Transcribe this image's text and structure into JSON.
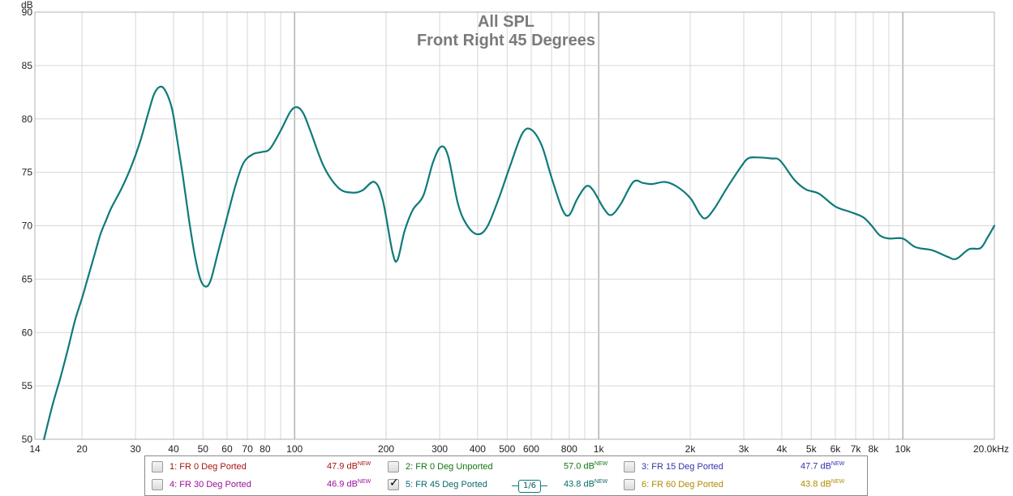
{
  "chart_data": {
    "type": "line",
    "title": "All SPL",
    "subtitle": "Front Right 45 Degrees",
    "ylabel": "dB",
    "xlabel": "",
    "x_scale": "log",
    "xlim": [
      14,
      20000
    ],
    "ylim": [
      50,
      90
    ],
    "grid": true,
    "y_ticks": [
      "50",
      "55",
      "60",
      "65",
      "70",
      "75",
      "80",
      "85",
      "90"
    ],
    "x_ticks": [
      {
        "value": 14,
        "label": "14"
      },
      {
        "value": 20,
        "label": "20"
      },
      {
        "value": 30,
        "label": "30"
      },
      {
        "value": 40,
        "label": "40"
      },
      {
        "value": 50,
        "label": "50"
      },
      {
        "value": 60,
        "label": "60"
      },
      {
        "value": 70,
        "label": "70"
      },
      {
        "value": 80,
        "label": "80"
      },
      {
        "value": 100,
        "label": "100"
      },
      {
        "value": 200,
        "label": "200"
      },
      {
        "value": 300,
        "label": "300"
      },
      {
        "value": 400,
        "label": "400"
      },
      {
        "value": 500,
        "label": "500"
      },
      {
        "value": 600,
        "label": "600"
      },
      {
        "value": 800,
        "label": "800"
      },
      {
        "value": 1000,
        "label": "1k"
      },
      {
        "value": 2000,
        "label": "2k"
      },
      {
        "value": 3000,
        "label": "3k"
      },
      {
        "value": 4000,
        "label": "4k"
      },
      {
        "value": 5000,
        "label": "5k"
      },
      {
        "value": 6000,
        "label": "6k"
      },
      {
        "value": 7000,
        "label": "7k"
      },
      {
        "value": 8000,
        "label": "8k"
      },
      {
        "value": 10000,
        "label": "10k"
      },
      {
        "value": 20000,
        "label": "20.0kHz"
      }
    ],
    "series": [
      {
        "name": "5: FR 45 Deg Ported",
        "color": "#0f7a7a",
        "points": [
          [
            15,
            50.0
          ],
          [
            16,
            53.2
          ],
          [
            17,
            55.8
          ],
          [
            18,
            58.5
          ],
          [
            19,
            61.2
          ],
          [
            20,
            63.2
          ],
          [
            21,
            65.3
          ],
          [
            22,
            67.3
          ],
          [
            23,
            69.2
          ],
          [
            24,
            70.5
          ],
          [
            25,
            71.7
          ],
          [
            27,
            73.5
          ],
          [
            29,
            75.5
          ],
          [
            31,
            77.8
          ],
          [
            33,
            80.5
          ],
          [
            34.5,
            82.3
          ],
          [
            36,
            83.0
          ],
          [
            37.5,
            82.7
          ],
          [
            39.5,
            81.0
          ],
          [
            41,
            78.3
          ],
          [
            43,
            74.5
          ],
          [
            45,
            70.5
          ],
          [
            47,
            67.2
          ],
          [
            49,
            65.0
          ],
          [
            51,
            64.3
          ],
          [
            53,
            64.9
          ],
          [
            56,
            67.5
          ],
          [
            60,
            70.8
          ],
          [
            64,
            73.8
          ],
          [
            68,
            75.9
          ],
          [
            73,
            76.7
          ],
          [
            78,
            76.9
          ],
          [
            83,
            77.2
          ],
          [
            90,
            78.9
          ],
          [
            97,
            80.7
          ],
          [
            102,
            81.1
          ],
          [
            107,
            80.5
          ],
          [
            113,
            78.8
          ],
          [
            125,
            75.5
          ],
          [
            140,
            73.5
          ],
          [
            155,
            73.1
          ],
          [
            167,
            73.3
          ],
          [
            183,
            74.1
          ],
          [
            195,
            72.4
          ],
          [
            210,
            67.5
          ],
          [
            218,
            66.8
          ],
          [
            230,
            69.5
          ],
          [
            245,
            71.5
          ],
          [
            265,
            72.8
          ],
          [
            285,
            75.9
          ],
          [
            303,
            77.4
          ],
          [
            320,
            76.5
          ],
          [
            345,
            72.0
          ],
          [
            370,
            70.0
          ],
          [
            400,
            69.2
          ],
          [
            430,
            69.9
          ],
          [
            470,
            72.6
          ],
          [
            510,
            75.5
          ],
          [
            560,
            78.6
          ],
          [
            600,
            79.0
          ],
          [
            650,
            77.5
          ],
          [
            700,
            74.5
          ],
          [
            760,
            71.5
          ],
          [
            800,
            71.0
          ],
          [
            850,
            72.5
          ],
          [
            910,
            73.7
          ],
          [
            960,
            73.3
          ],
          [
            1040,
            71.6
          ],
          [
            1100,
            71.0
          ],
          [
            1180,
            72.0
          ],
          [
            1300,
            74.1
          ],
          [
            1400,
            74.0
          ],
          [
            1500,
            73.9
          ],
          [
            1650,
            74.1
          ],
          [
            1800,
            73.7
          ],
          [
            2000,
            72.6
          ],
          [
            2150,
            71.1
          ],
          [
            2250,
            70.7
          ],
          [
            2400,
            71.6
          ],
          [
            2650,
            73.6
          ],
          [
            2950,
            75.6
          ],
          [
            3100,
            76.3
          ],
          [
            3300,
            76.4
          ],
          [
            3700,
            76.3
          ],
          [
            3950,
            76.1
          ],
          [
            4400,
            74.3
          ],
          [
            4800,
            73.4
          ],
          [
            5300,
            73.0
          ],
          [
            6000,
            71.8
          ],
          [
            6700,
            71.3
          ],
          [
            7400,
            70.8
          ],
          [
            7900,
            70.0
          ],
          [
            8400,
            69.1
          ],
          [
            9000,
            68.8
          ],
          [
            10000,
            68.8
          ],
          [
            11000,
            68.0
          ],
          [
            12500,
            67.7
          ],
          [
            14000,
            67.1
          ],
          [
            15000,
            66.9
          ],
          [
            16500,
            67.8
          ],
          [
            18000,
            67.9
          ],
          [
            19000,
            68.9
          ],
          [
            20000,
            70.0
          ]
        ]
      }
    ]
  },
  "legend": {
    "items": [
      {
        "label": "1: FR 0 Deg Ported",
        "value": "47.9 dB",
        "new": "NEW",
        "color": "#aa1111",
        "checked": false
      },
      {
        "label": "2: FR 0 Deg Unported",
        "value": "57.0 dB",
        "new": "NEW",
        "color": "#117711",
        "checked": false
      },
      {
        "label": "3: FR 15 Deg Ported",
        "value": "47.7 dB",
        "new": "NEW",
        "color": "#3333aa",
        "checked": false
      },
      {
        "label": "4: FR 30 Deg Ported",
        "value": "46.9 dB",
        "new": "NEW",
        "color": "#991199",
        "checked": false
      },
      {
        "label": "5: FR 45 Deg Ported",
        "value": "43.8 dB",
        "new": "NEW",
        "color": "#0a7a7a",
        "checked": true
      },
      {
        "label": "6: FR 60 Deg Ported",
        "value": "43.8 dB",
        "new": "NEW",
        "color": "#b08a00",
        "checked": false
      }
    ],
    "smoothing_label": "1/6"
  }
}
